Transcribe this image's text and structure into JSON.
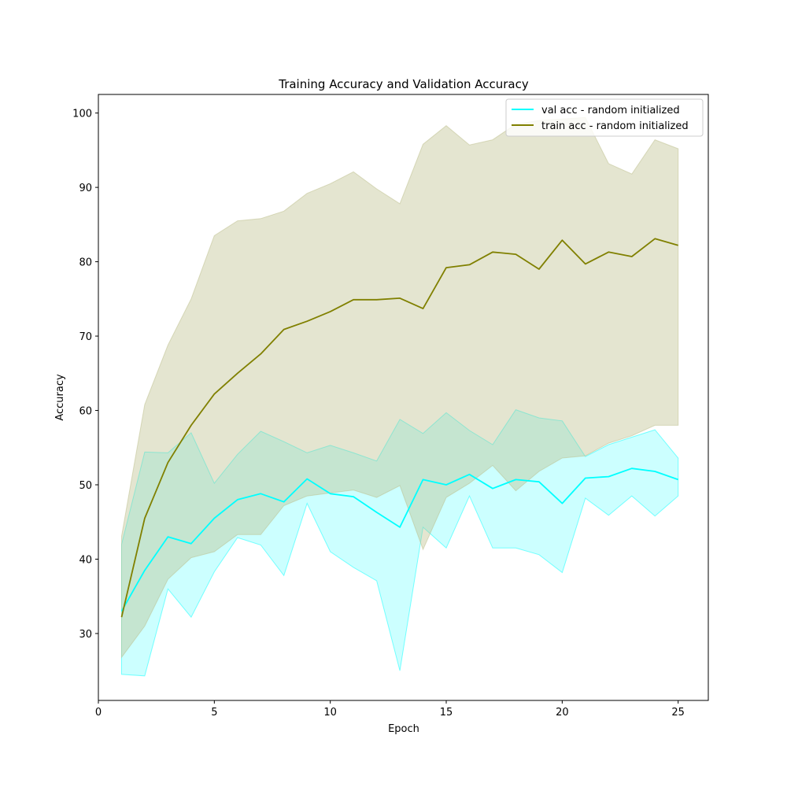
{
  "chart_data": {
    "type": "line",
    "title": "Training Accuracy and Validation Accuracy",
    "xlabel": "Epoch",
    "ylabel": "Accuracy",
    "xlim": [
      0,
      26.3
    ],
    "ylim": [
      21,
      102.5
    ],
    "xticks": [
      0,
      5,
      10,
      15,
      20,
      25
    ],
    "yticks": [
      30,
      40,
      50,
      60,
      70,
      80,
      90,
      100
    ],
    "grid": false,
    "legend_position": "top-right",
    "x": [
      1,
      2,
      3,
      4,
      5,
      6,
      7,
      8,
      9,
      10,
      11,
      12,
      13,
      14,
      15,
      16,
      17,
      18,
      19,
      20,
      21,
      22,
      23,
      24,
      25
    ],
    "series": [
      {
        "name": "val acc - random initialized",
        "color": "#00ffff",
        "band_color": "#00ffff",
        "values": [
          33.0,
          38.5,
          43.0,
          42.1,
          45.5,
          48.0,
          48.8,
          47.7,
          50.8,
          48.8,
          48.4,
          46.3,
          44.3,
          50.7,
          50.0,
          51.4,
          49.5,
          50.7,
          50.4,
          47.5,
          50.9,
          51.1,
          52.2,
          51.8,
          50.7
        ],
        "upper": [
          42.0,
          54.4,
          54.3,
          57.0,
          50.2,
          54.1,
          57.2,
          55.8,
          54.3,
          55.3,
          54.3,
          53.2,
          58.8,
          56.9,
          59.7,
          57.3,
          55.4,
          60.1,
          59.0,
          58.6,
          53.8,
          55.4,
          56.4,
          57.4,
          53.6
        ],
        "lower": [
          24.5,
          24.3,
          36.0,
          32.2,
          38.3,
          42.9,
          41.9,
          37.8,
          47.5,
          41.0,
          38.9,
          37.1,
          25.0,
          44.3,
          41.5,
          48.5,
          41.5,
          41.5,
          40.6,
          38.2,
          48.2,
          45.9,
          48.5,
          45.8,
          48.5
        ]
      },
      {
        "name": "train acc - random initialized",
        "color": "#808000",
        "band_color": "#bcbd8a",
        "values": [
          32.2,
          45.5,
          53.0,
          58.0,
          62.2,
          65.0,
          67.6,
          70.9,
          72.0,
          73.3,
          74.9,
          74.9,
          75.1,
          73.7,
          79.2,
          79.6,
          81.3,
          81.0,
          79.0,
          82.9,
          79.7,
          81.3,
          80.7,
          83.1,
          82.2
        ],
        "upper": [
          43.1,
          60.8,
          68.8,
          75.0,
          83.5,
          85.5,
          85.8,
          86.8,
          89.2,
          90.5,
          92.1,
          89.8,
          87.8,
          95.8,
          98.3,
          95.7,
          96.4,
          98.5,
          99.0,
          99.2,
          99.4,
          93.2,
          91.8,
          96.4,
          95.2
        ],
        "lower": [
          26.8,
          31.0,
          37.3,
          40.2,
          41.0,
          43.3,
          43.3,
          47.2,
          48.5,
          48.9,
          49.3,
          48.3,
          49.9,
          41.3,
          48.3,
          50.2,
          52.6,
          49.2,
          51.8,
          53.6,
          53.9,
          55.6,
          56.6,
          58.0,
          58.0
        ]
      }
    ]
  }
}
